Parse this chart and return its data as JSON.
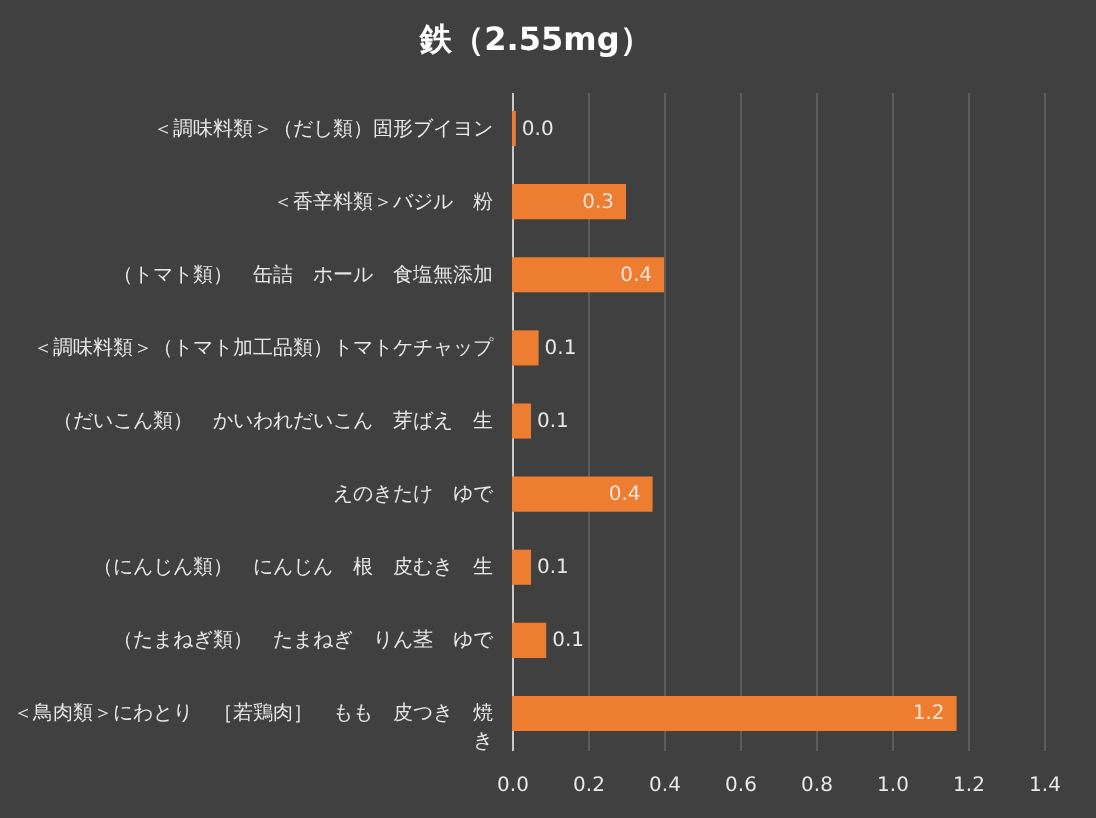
{
  "chart_data": {
    "type": "bar",
    "orientation": "horizontal",
    "title": "鉄（2.55mg）",
    "categories": [
      "＜調味料類＞（だし類）固形ブイヨン",
      "＜香辛料類＞バジル　粉",
      "（トマト類）　缶詰　ホール　食塩無添加",
      "＜調味料類＞（トマト加工品類）トマトケチャップ",
      "（だいこん類）　かいわれだいこん　芽ばえ　生",
      "えのきたけ　ゆで",
      "（にんじん類）　にんじん　根　皮むき　生",
      "（たまねぎ類）　たまねぎ　りん茎　ゆで",
      "＜鳥肉類＞にわとり　［若鶏肉］　もも　皮つき　焼き"
    ],
    "values": [
      0.01,
      0.3,
      0.4,
      0.07,
      0.05,
      0.37,
      0.05,
      0.09,
      1.17
    ],
    "value_labels": [
      "0.0",
      "0.3",
      "0.4",
      "0.1",
      "0.1",
      "0.4",
      "0.1",
      "0.1",
      "1.2"
    ],
    "color": "#ed7d31",
    "xlim": [
      0,
      1.4
    ],
    "xticks": [
      {
        "value": 0,
        "label": "0.0"
      },
      0.2,
      0.4,
      0.6,
      0.8,
      {
        "value": 1,
        "label": "1.0"
      },
      1.2,
      1.4
    ],
    "grid": "x"
  }
}
